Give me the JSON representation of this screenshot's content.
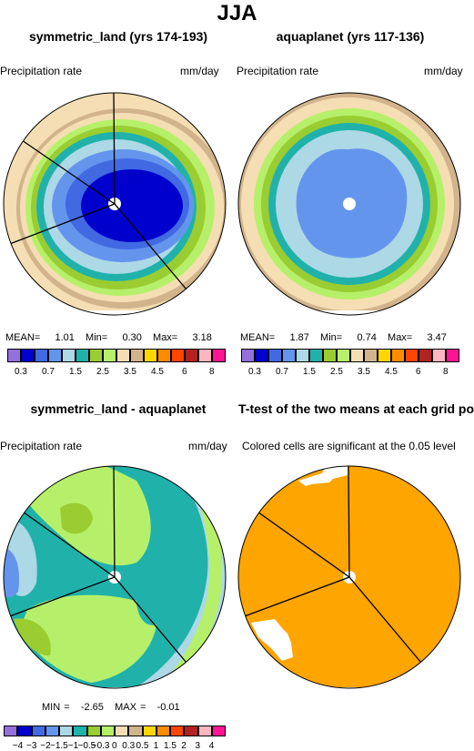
{
  "page": {
    "title": "JJA"
  },
  "panels": [
    {
      "title": "symmetric_land (yrs 174-193)",
      "left_label": "Precipitation rate",
      "right_label": "mm/day",
      "stats": {
        "mean_label": "MEAN=",
        "mean": "1.01",
        "min_label": "Min=",
        "min": "0.30",
        "max_label": "Max=",
        "max": "3.18"
      }
    },
    {
      "title": "aquaplanet (yrs 117-136)",
      "left_label": "Precipitation rate",
      "right_label": "mm/day",
      "stats": {
        "mean_label": "MEAN=",
        "mean": "1.87",
        "min_label": "Min=",
        "min": "0.74",
        "max_label": "Max=",
        "max": "3.47"
      }
    },
    {
      "title": "symmetric_land - aquaplanet",
      "left_label": "Precipitation rate",
      "right_label": "mm/day",
      "stats": {
        "min_label": "MIN =",
        "min": "-2.65",
        "max_label": "MAX =",
        "max": "-0.01"
      }
    },
    {
      "title": "T-test of the two means at each grid point",
      "left_label": "Colored cells are significant at the 0.05 level"
    }
  ],
  "colorbars": {
    "abs": {
      "colors": [
        "#9370db",
        "#0000cd",
        "#4169e1",
        "#6495ed",
        "#add8e6",
        "#20b2aa",
        "#9acd32",
        "#b6f06a",
        "#f5deb3",
        "#d2b48c",
        "#ffd700",
        "#ff8c00",
        "#ff4500",
        "#b22222",
        "#ffb6c1",
        "#ff1493"
      ],
      "labels": [
        "0.3",
        "0.7",
        "1.5",
        "2.5",
        "3.5",
        "4.5",
        "6",
        "8"
      ]
    },
    "diff": {
      "colors": [
        "#9370db",
        "#0000cd",
        "#4169e1",
        "#6495ed",
        "#add8e6",
        "#20b2aa",
        "#9acd32",
        "#b6f06a",
        "#f5deb3",
        "#d2b48c",
        "#ffd700",
        "#ff8c00",
        "#ff4500",
        "#b22222",
        "#ffb6c1",
        "#ff1493"
      ],
      "labels": [
        "−4",
        "−3",
        "−2",
        "−1.5",
        "−1",
        "−0.5",
        "−0.3",
        "0",
        "0.3",
        "0.5",
        "1",
        "1.5",
        "2",
        "3",
        "4"
      ]
    }
  },
  "colors": {
    "significant": "#ffa500",
    "land_boundary": "#000000",
    "pole_cap": "#ffffff"
  }
}
